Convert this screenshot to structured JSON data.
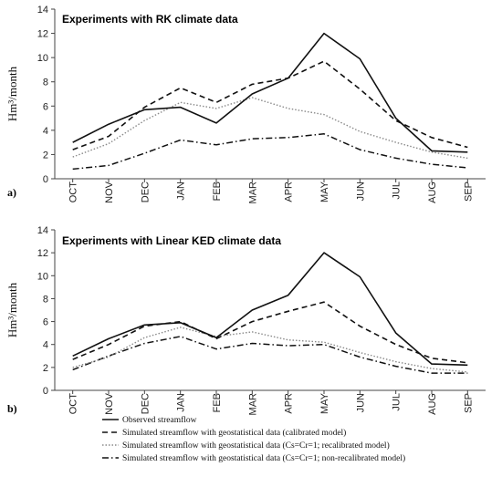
{
  "chart_data": [
    {
      "type": "line",
      "panel_label": "a)",
      "title": "Experiments with RK climate data",
      "ylabel": "Hm³/month",
      "ylim": [
        0,
        14
      ],
      "yticks": [
        0,
        2,
        4,
        6,
        8,
        10,
        12,
        14
      ],
      "categories": [
        "OCT",
        "NOV",
        "DEC",
        "JAN",
        "FEB",
        "MAR",
        "APR",
        "MAY",
        "JUN",
        "JUL",
        "AUG",
        "SEP"
      ],
      "grid": false,
      "series": [
        {
          "key": "observed",
          "values": [
            3.0,
            4.5,
            5.7,
            5.9,
            4.6,
            7.0,
            8.3,
            12.0,
            9.9,
            5.0,
            2.3,
            2.2
          ]
        },
        {
          "key": "calibrated",
          "values": [
            2.4,
            3.5,
            5.9,
            7.5,
            6.3,
            7.8,
            8.3,
            9.7,
            7.4,
            4.8,
            3.4,
            2.6
          ]
        },
        {
          "key": "recalibrated",
          "values": [
            1.8,
            2.9,
            4.8,
            6.3,
            5.8,
            6.7,
            5.8,
            5.3,
            3.9,
            3.0,
            2.2,
            1.7
          ]
        },
        {
          "key": "nonrecalibrated",
          "values": [
            0.8,
            1.1,
            2.1,
            3.2,
            2.8,
            3.3,
            3.4,
            3.7,
            2.4,
            1.7,
            1.2,
            0.9
          ]
        }
      ]
    },
    {
      "type": "line",
      "panel_label": "b)",
      "title": "Experiments with Linear KED climate data",
      "ylabel": "Hm³/month",
      "ylim": [
        0,
        14
      ],
      "yticks": [
        0,
        2,
        4,
        6,
        8,
        10,
        12,
        14
      ],
      "categories": [
        "OCT",
        "NOV",
        "DEC",
        "JAN",
        "FEB",
        "MAR",
        "APR",
        "MAY",
        "JUN",
        "JUL",
        "AUG",
        "SEP"
      ],
      "grid": false,
      "series": [
        {
          "key": "observed",
          "values": [
            3.0,
            4.5,
            5.7,
            5.9,
            4.6,
            7.0,
            8.3,
            12.0,
            9.9,
            5.0,
            2.3,
            2.2
          ]
        },
        {
          "key": "calibrated",
          "values": [
            2.7,
            4.0,
            5.6,
            6.0,
            4.5,
            6.0,
            6.9,
            7.7,
            5.6,
            4.0,
            2.8,
            2.4
          ]
        },
        {
          "key": "recalibrated",
          "values": [
            2.0,
            2.9,
            4.6,
            5.5,
            4.7,
            5.1,
            4.4,
            4.2,
            3.3,
            2.5,
            1.9,
            1.6
          ]
        },
        {
          "key": "nonrecalibrated",
          "values": [
            1.8,
            3.0,
            4.1,
            4.7,
            3.6,
            4.1,
            3.9,
            4.0,
            2.9,
            2.1,
            1.5,
            1.5
          ]
        }
      ]
    }
  ],
  "legend": [
    {
      "key": "observed",
      "label": "Observed streamflow",
      "color": "#111111",
      "dash": "none",
      "width": 1.6
    },
    {
      "key": "calibrated",
      "label": "Simulated streamflow with geostatistical data (calibrated model)",
      "color": "#111111",
      "dash": "6,4",
      "width": 1.6
    },
    {
      "key": "recalibrated",
      "label": "Simulated streamflow with geostatistical data (Cs=Cr=1;  recalibrated model)",
      "color": "#8a8a8a",
      "dash": "1.5,2",
      "width": 1.4
    },
    {
      "key": "nonrecalibrated",
      "label": "Simulated streamflow with geostatistical data (Cs=Cr=1; non-recalibrated model)",
      "color": "#111111",
      "dash": "7,3,1.5,3",
      "width": 1.5
    }
  ]
}
